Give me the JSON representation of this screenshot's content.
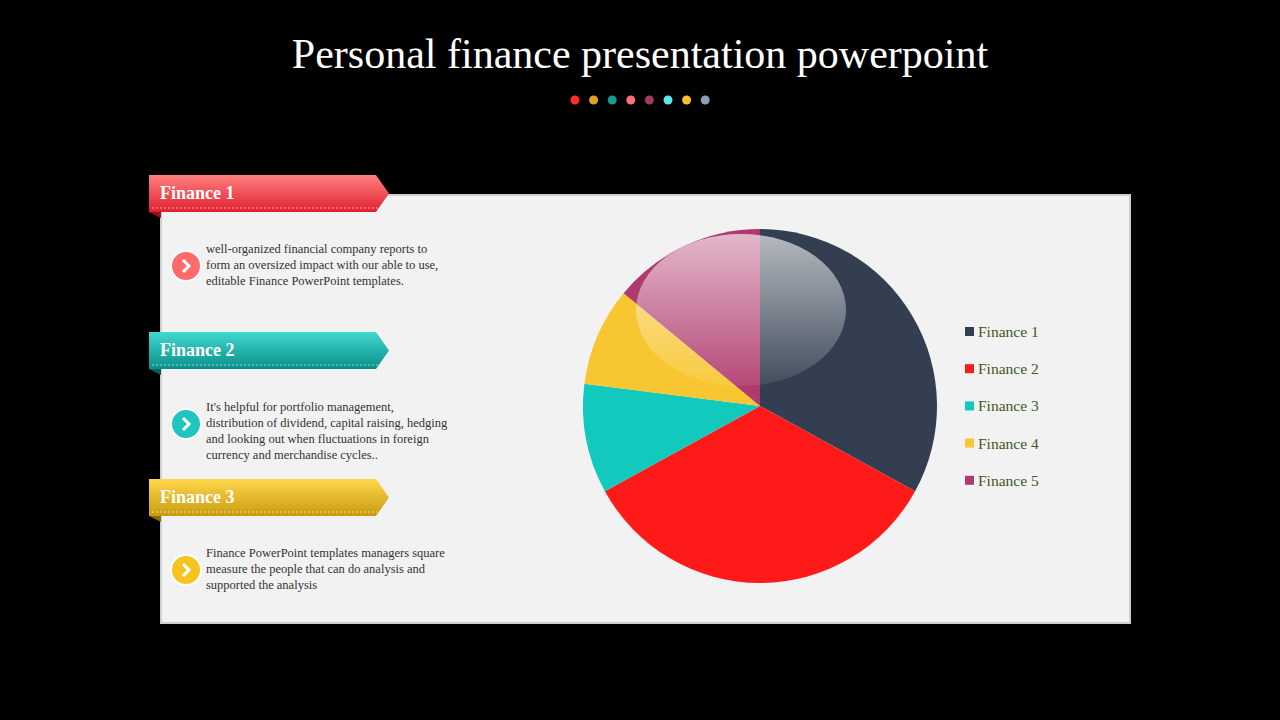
{
  "chart_data": {
    "type": "pie",
    "title": "Personal finance presentation powerpoint",
    "categories": [
      "Finance 1",
      "Finance 2",
      "Finance 3",
      "Finance 4",
      "Finance 5"
    ],
    "values": [
      33,
      34,
      10,
      9,
      14
    ],
    "colors": [
      "#333f50",
      "#ff1a1a",
      "#12c9bd",
      "#f8c630",
      "#b03a6e"
    ],
    "legend": "right"
  },
  "panels": [
    {
      "heading": "Finance 1",
      "lines": [
        "well-organized financial company reports to",
        "form an oversized impact with our able to use,",
        "editable Finance PowerPoint templates."
      ]
    },
    {
      "heading": "Finance 2",
      "lines": [
        "It's helpful for portfolio management,",
        "distribution of dividend, capital raising, hedging",
        "and looking out when fluctuations in foreign",
        "currency and merchandise cycles.."
      ]
    },
    {
      "heading": "Finance 3",
      "lines": [
        "Finance PowerPoint templates managers square",
        "measure the people that can do analysis and",
        "supported the analysis"
      ]
    }
  ]
}
